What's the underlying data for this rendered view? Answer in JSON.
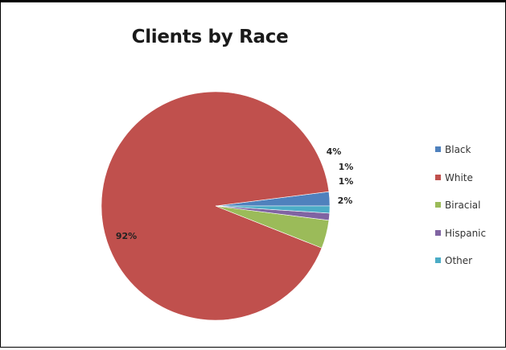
{
  "chart_data": {
    "type": "pie",
    "title": "Clients by Race",
    "categories": [
      "Black",
      "White",
      "Biracial",
      "Hispanic",
      "Other"
    ],
    "values": [
      2,
      92,
      4,
      1,
      1
    ],
    "labels": [
      "2%",
      "92%",
      "4%",
      "1%",
      "1%"
    ],
    "colors": [
      "#4f81bd",
      "#c0504d",
      "#9bbb59",
      "#8064a2",
      "#4bacc6"
    ],
    "legend_position": "right",
    "start_angle": "3 o'clock, counterclockwise"
  }
}
